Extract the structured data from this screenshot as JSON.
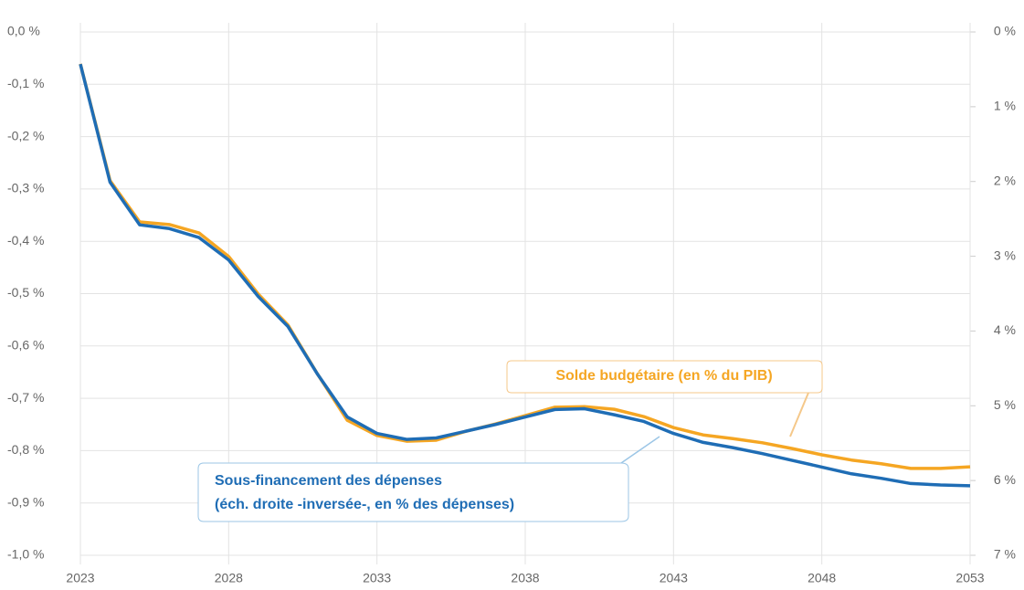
{
  "chart_data": {
    "type": "line",
    "x": [
      2023,
      2024,
      2025,
      2026,
      2027,
      2028,
      2029,
      2030,
      2031,
      2032,
      2033,
      2034,
      2035,
      2036,
      2037,
      2038,
      2039,
      2040,
      2041,
      2042,
      2043,
      2044,
      2045,
      2046,
      2047,
      2048,
      2049,
      2050,
      2051,
      2052,
      2053
    ],
    "xlim": [
      2023,
      2053
    ],
    "xticks": [
      2023,
      2028,
      2033,
      2038,
      2043,
      2048,
      2053
    ],
    "ylim": [
      -1.0,
      0.0
    ],
    "yticks": [
      {
        "value": 0.0,
        "label": "0,0 %"
      },
      {
        "value": -0.1,
        "label": "-0,1 %"
      },
      {
        "value": -0.2,
        "label": "-0,2 %"
      },
      {
        "value": -0.3,
        "label": "-0,3 %"
      },
      {
        "value": -0.4,
        "label": "-0,4 %"
      },
      {
        "value": -0.5,
        "label": "-0,5 %"
      },
      {
        "value": -0.6,
        "label": "-0,6 %"
      },
      {
        "value": -0.7,
        "label": "-0,7 %"
      },
      {
        "value": -0.8,
        "label": "-0,8 %"
      },
      {
        "value": -0.9,
        "label": "-0,9 %"
      },
      {
        "value": -1.0,
        "label": "-1,0 %"
      }
    ],
    "y2lim": [
      0,
      7
    ],
    "y2_inverted": true,
    "y2ticks": [
      {
        "value": 0,
        "label": "0 %"
      },
      {
        "value": 1,
        "label": "1 %"
      },
      {
        "value": 2,
        "label": "2 %"
      },
      {
        "value": 3,
        "label": "3 %"
      },
      {
        "value": 4,
        "label": "4 %"
      },
      {
        "value": 5,
        "label": "5 %"
      },
      {
        "value": 6,
        "label": "6 %"
      },
      {
        "value": 7,
        "label": "7 %"
      }
    ],
    "grid": true,
    "series": [
      {
        "name": "Solde budgétaire (en % du PIB)",
        "color": "#f5a623",
        "values": [
          -0.061,
          -0.284,
          -0.363,
          -0.368,
          -0.384,
          -0.429,
          -0.501,
          -0.56,
          -0.654,
          -0.742,
          -0.771,
          -0.782,
          -0.78,
          -0.763,
          -0.749,
          -0.733,
          -0.717,
          -0.716,
          -0.721,
          -0.735,
          -0.756,
          -0.77,
          -0.777,
          -0.785,
          -0.796,
          -0.808,
          -0.818,
          -0.825,
          -0.834,
          -0.834,
          -0.831
        ]
      },
      {
        "name": "Sous-financement des dépenses",
        "name2": "(éch. droite -inversée-, en % des dépenses)",
        "color": "#1f6db5",
        "axis": "y2",
        "values": [
          0.43,
          2.01,
          2.58,
          2.63,
          2.75,
          3.05,
          3.54,
          3.94,
          4.58,
          5.15,
          5.37,
          5.45,
          5.43,
          5.34,
          5.25,
          5.15,
          5.05,
          5.04,
          5.12,
          5.21,
          5.37,
          5.49,
          5.56,
          5.64,
          5.73,
          5.82,
          5.91,
          5.97,
          6.04,
          6.06,
          6.07
        ]
      }
    ]
  }
}
